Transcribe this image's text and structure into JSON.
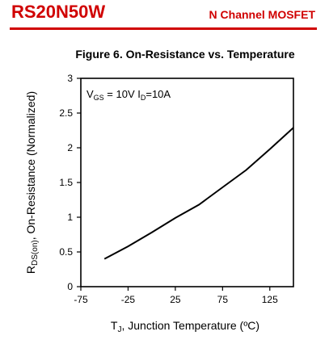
{
  "header": {
    "part_number": "RS20N50W",
    "device_type": "N Channel MOSFET",
    "accent_color": "#d00000"
  },
  "chart_data": {
    "type": "line",
    "title": "Figure 6. On-Resistance vs. Temperature",
    "xlabel_main": "T",
    "xlabel_sub": "J",
    "xlabel_rest": ", Junction Temperature (ºC)",
    "ylabel_main": "R",
    "ylabel_sub": "DS(on)",
    "ylabel_rest": ", On-Resistance (Normalized)",
    "annotation": {
      "v_main": "V",
      "v_sub": "GS",
      "v_rest": " = 10V I",
      "i_sub": "D",
      "i_rest": "=10A"
    },
    "xlim": [
      -75,
      150
    ],
    "ylim": [
      0,
      3
    ],
    "xticks": [
      "-75",
      "-25",
      "25",
      "75",
      "125"
    ],
    "xtick_values": [
      -75,
      -25,
      25,
      75,
      125
    ],
    "yticks": [
      "0",
      "0.5",
      "1",
      "1.5",
      "2",
      "2.5",
      "3"
    ],
    "ytick_values": [
      0,
      0.5,
      1,
      1.5,
      2,
      2.5,
      3
    ],
    "grid": false,
    "series": [
      {
        "x": [
          -50,
          -25,
          0,
          25,
          50,
          75,
          100,
          125,
          150
        ],
        "y": [
          0.4,
          0.58,
          0.78,
          0.99,
          1.18,
          1.43,
          1.68,
          1.98,
          2.29
        ]
      }
    ]
  }
}
